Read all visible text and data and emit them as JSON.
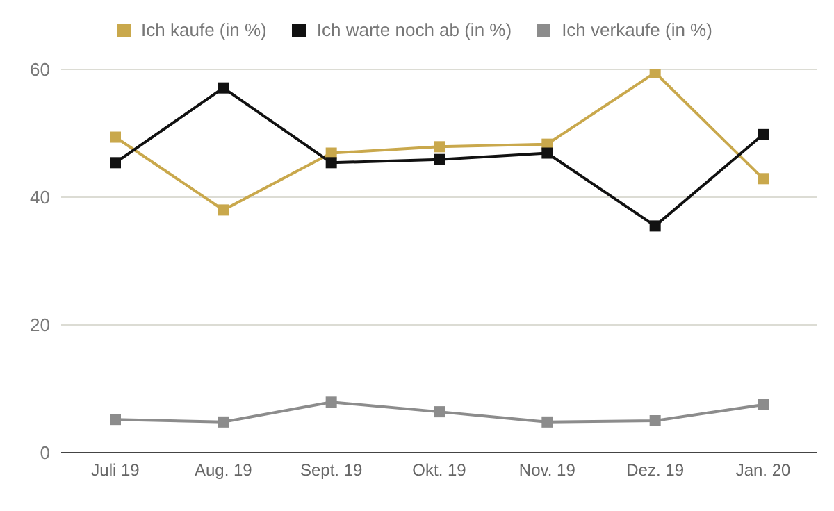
{
  "chart_data": {
    "type": "line",
    "categories": [
      "Juli 19",
      "Aug. 19",
      "Sept. 19",
      "Okt. 19",
      "Nov. 19",
      "Dez. 19",
      "Jan. 20"
    ],
    "series": [
      {
        "name": "Ich kaufe (in %)",
        "color": "#c9a84c",
        "values": [
          49.4,
          38,
          46.9,
          47.9,
          48.3,
          59.5,
          42.9
        ]
      },
      {
        "name": "Ich warte noch ab (in %)",
        "color": "#111111",
        "values": [
          45.4,
          57.1,
          45.4,
          45.9,
          46.9,
          35.5,
          49.8
        ]
      },
      {
        "name": "Ich verkaufe (in %)",
        "color": "#8c8c8c",
        "values": [
          5.2,
          4.8,
          7.9,
          6.4,
          4.8,
          5,
          7.5
        ]
      }
    ],
    "ylim": [
      0,
      60
    ],
    "yticks": [
      0,
      20,
      40,
      60
    ],
    "grid": "y",
    "legend": "top",
    "marker": "square"
  }
}
